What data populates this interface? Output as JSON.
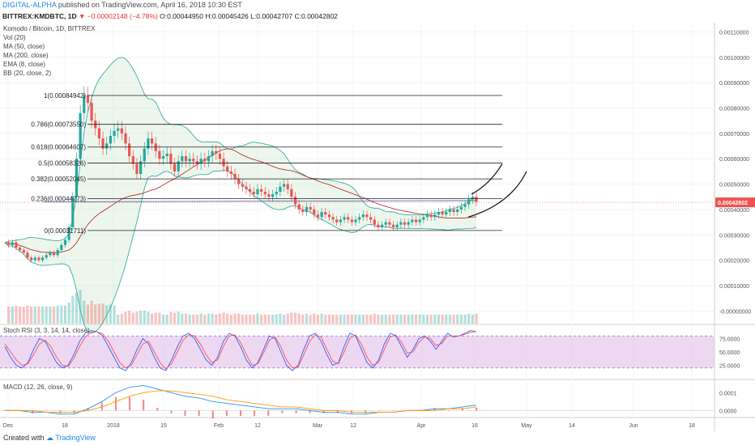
{
  "header": {
    "author": "DIGITAL-ALPHA",
    "published": "published on TradingView.com, April 16, 2018 10:30 EST",
    "symbol": "BITTREX:KMDBTC, 1D",
    "change_arrow": "▼",
    "change": "−0.00002148 (−4.78%)",
    "ohlc": "O:0.00044950 H:0.00045426 L:0.00042707 C:0.00042802"
  },
  "legend": {
    "title": "Komodo / Bitcoin, 1D, BITTREX",
    "lines": [
      "Vol (20)",
      "MA (50, close)",
      "MA (200, close)",
      "EMA (8, close)",
      "BB (20, close, 2)"
    ]
  },
  "footer": {
    "created_with": "Created with",
    "brand": "TradingView"
  },
  "colors": {
    "up": "#26a69a",
    "down": "#ef5350",
    "bb": "#26a69a",
    "bb_fill": "#c8e6c9",
    "ma200": "#3f51b5",
    "ma50": "#b71c1c",
    "ema": "#b7950b",
    "rsi_k": "#2962ff",
    "rsi_d": "#ff5252",
    "rsi_band": "#e1bee7",
    "macd": "#2196f3",
    "signal": "#ff9800",
    "hist": "#ef5350",
    "price_tag": "#ef5350"
  },
  "chart_data": [
    {
      "type": "candlestick",
      "title": "Komodo / Bitcoin, 1D, BITTREX",
      "ylim": [
        -5e-05,
        0.00113
      ],
      "y_ticks": [
        "0.00110000",
        "0.00100000",
        "0.00090000",
        "0.00080000",
        "0.00070000",
        "0.00060000",
        "0.00050000",
        "0.00040000",
        "0.00030000",
        "0.00020000",
        "0.00010000",
        "-0.00000000"
      ],
      "x_ticks": [
        "Dec",
        "18",
        "2018",
        "15",
        "Feb",
        "12",
        "Mar",
        "12",
        "Apr",
        "16",
        "May",
        "14",
        "Jun",
        "18"
      ],
      "last_price_label": "0.00042802",
      "fib_levels": [
        {
          "label": "1(0.00084942)",
          "value": 0.00084942
        },
        {
          "label": "0.786(0.00073550)",
          "value": 0.0007355
        },
        {
          "label": "0.618(0.00064607)",
          "value": 0.00064607
        },
        {
          "label": "0.5(0.00058326)",
          "value": 0.00058326
        },
        {
          "label": "0.382(0.00052045)",
          "value": 0.00052045
        },
        {
          "label": "0.236(0.00044273)",
          "value": 0.00044273
        },
        {
          "label": "0(0.00031711)",
          "value": 0.00031711
        }
      ],
      "close_series": [
        0.00027,
        0.00026,
        0.00027,
        0.00025,
        0.00024,
        0.00023,
        0.00021,
        0.0002,
        0.00021,
        0.0002,
        0.00021,
        0.00022,
        0.00023,
        0.00022,
        0.00024,
        0.00026,
        0.00028,
        0.00033,
        0.00045,
        0.0006,
        0.00078,
        0.00085,
        0.00082,
        0.00075,
        0.00072,
        0.00068,
        0.00064,
        0.00066,
        0.00069,
        0.00071,
        0.00072,
        0.0007,
        0.00066,
        0.00061,
        0.00058,
        0.00054,
        0.00059,
        0.00064,
        0.00068,
        0.00066,
        0.00063,
        0.0006,
        0.00061,
        0.00062,
        0.00058,
        0.00055,
        0.00059,
        0.00061,
        0.00059,
        0.0006,
        0.00059,
        0.00058,
        0.0006,
        0.00059,
        0.00061,
        0.00063,
        0.00062,
        0.0006,
        0.00057,
        0.00055,
        0.00054,
        0.00052,
        0.0005,
        0.00049,
        0.00048,
        0.00047,
        0.00046,
        0.00048,
        0.00047,
        0.00046,
        0.00045,
        0.00046,
        0.00047,
        0.00049,
        0.0005,
        0.00048,
        0.00045,
        0.00042,
        0.0004,
        0.00039,
        0.00041,
        0.0004,
        0.00038,
        0.00037,
        0.00039,
        0.00038,
        0.00037,
        0.00036,
        0.00035,
        0.00036,
        0.00037,
        0.00036,
        0.00035,
        0.00036,
        0.00037,
        0.00038,
        0.00037,
        0.00036,
        0.00034,
        0.00033,
        0.00034,
        0.00035,
        0.00034,
        0.00033,
        0.00034,
        0.00035,
        0.00034,
        0.00035,
        0.00036,
        0.00035,
        0.00036,
        0.00037,
        0.00038,
        0.00037,
        0.00038,
        0.00039,
        0.00038,
        0.00039,
        0.0004,
        0.00039,
        0.0004,
        0.00041,
        0.00042,
        0.00044,
        0.00045,
        0.00043
      ]
    },
    {
      "type": "line",
      "title": "Stoch RSI (3, 3, 14, 14, close)",
      "ylim": [
        0,
        100
      ],
      "y_ticks": [
        "75.0000",
        "50.0000",
        "25.0000"
      ],
      "bands": [
        80,
        20
      ],
      "series": [
        {
          "name": "K",
          "values": [
            60,
            40,
            25,
            20,
            30,
            55,
            75,
            70,
            50,
            30,
            20,
            25,
            45,
            70,
            85,
            90,
            88,
            80,
            60,
            40,
            20,
            15,
            30,
            55,
            75,
            65,
            40,
            20,
            15,
            35,
            60,
            80,
            85,
            75,
            55,
            35,
            25,
            40,
            70,
            85,
            80,
            60,
            35,
            20,
            30,
            55,
            80,
            75,
            50,
            25,
            15,
            25,
            55,
            80,
            85,
            70,
            45,
            25,
            30,
            60,
            85,
            80,
            55,
            30,
            20,
            35,
            65,
            85,
            80,
            60,
            40,
            55,
            75,
            80,
            70,
            55,
            70,
            85,
            78,
            80,
            85,
            90,
            88
          ]
        },
        {
          "name": "D",
          "values": [
            65,
            50,
            35,
            25,
            28,
            45,
            65,
            72,
            60,
            40,
            25,
            23,
            38,
            60,
            78,
            87,
            88,
            84,
            70,
            50,
            30,
            20,
            25,
            45,
            65,
            70,
            50,
            30,
            18,
            28,
            50,
            72,
            82,
            80,
            65,
            45,
            30,
            35,
            60,
            80,
            82,
            68,
            45,
            25,
            28,
            48,
            72,
            78,
            60,
            35,
            20,
            22,
            45,
            70,
            82,
            78,
            55,
            33,
            28,
            50,
            75,
            82,
            65,
            40,
            25,
            30,
            55,
            78,
            82,
            68,
            48,
            50,
            68,
            78,
            75,
            62,
            66,
            80,
            80,
            80,
            83,
            87,
            88
          ]
        }
      ]
    },
    {
      "type": "line",
      "title": "MACD (12, 26, close, 9)",
      "y_ticks": [
        "0.0001",
        "0.0000"
      ],
      "series": [
        {
          "name": "MACD",
          "values": [
            0,
            0,
            -1e-05,
            -1e-05,
            -2e-05,
            -2e-05,
            1e-05,
            5e-05,
            0.0001,
            0.00013,
            0.00014,
            0.00012,
            0.0001,
            8e-05,
            7e-05,
            5e-05,
            4e-05,
            3e-05,
            2e-05,
            1e-05,
            1e-05,
            1e-05,
            0.0,
            -1e-05,
            -1e-05,
            -2e-05,
            -2e-05,
            -1e-05,
            -1e-05,
            0,
            0,
            1e-05,
            1e-05,
            2e-05,
            3e-05
          ]
        },
        {
          "name": "Signal",
          "values": [
            0,
            0,
            0,
            -1e-05,
            -1e-05,
            -1e-05,
            0,
            2e-05,
            5e-05,
            8e-05,
            0.0001,
            0.00011,
            0.00011,
            0.0001,
            9e-05,
            8e-05,
            6e-05,
            5e-05,
            4e-05,
            3e-05,
            2e-05,
            2e-05,
            1e-05,
            0,
            0,
            -1e-05,
            -1e-05,
            -1e-05,
            -1e-05,
            0,
            0,
            0,
            1e-05,
            1e-05,
            2e-05
          ]
        }
      ]
    }
  ]
}
